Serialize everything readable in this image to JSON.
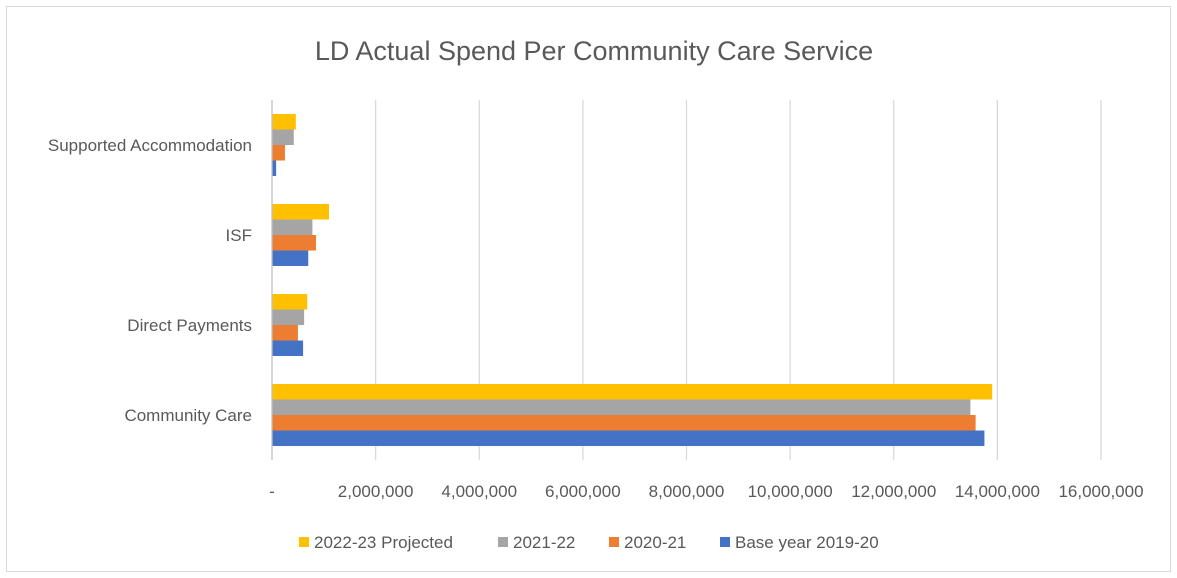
{
  "chart_data": {
    "type": "bar",
    "orientation": "horizontal",
    "title": "LD Actual Spend Per Community Care Service",
    "xlabel": "",
    "ylabel": "",
    "categories": [
      "Community Care",
      "Direct Payments",
      "ISF",
      "Supported Accommodation"
    ],
    "series": [
      {
        "name": "Base year 2019-20",
        "color": "#4472C4",
        "values": [
          13750000,
          600000,
          700000,
          80000
        ]
      },
      {
        "name": "2020-21",
        "color": "#ED7D31",
        "values": [
          13580000,
          500000,
          850000,
          250000
        ]
      },
      {
        "name": "2021-22",
        "color": "#A5A5A5",
        "values": [
          13480000,
          620000,
          780000,
          420000
        ]
      },
      {
        "name": "2022-23 Projected",
        "color": "#FFC000",
        "values": [
          13900000,
          680000,
          1100000,
          460000
        ]
      }
    ],
    "xlim": [
      0,
      16000000
    ],
    "x_ticks": [
      0,
      2000000,
      4000000,
      6000000,
      8000000,
      10000000,
      12000000,
      14000000,
      16000000
    ],
    "x_tick_labels": [
      "-",
      "2,000,000",
      "4,000,000",
      "6,000,000",
      "8,000,000",
      "10,000,000",
      "12,000,000",
      "14,000,000",
      "16,000,000"
    ],
    "grid": "vertical",
    "legend_position": "bottom",
    "legend_order": [
      "2022-23 Projected",
      "2021-22",
      "2020-21",
      "Base year 2019-20"
    ]
  },
  "colors": {
    "gridline": "#d9d9d9",
    "axis_line": "#bfbfbf",
    "text": "#595959"
  }
}
